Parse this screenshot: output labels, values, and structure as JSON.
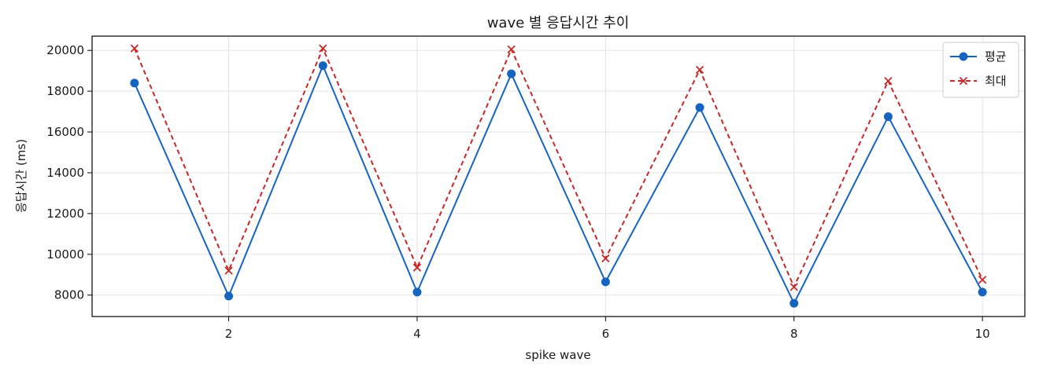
{
  "chart_data": {
    "type": "line",
    "title": "wave 별 응답시간 추이",
    "xlabel": "spike wave",
    "ylabel": "응답시간 (ms)",
    "x": [
      1,
      2,
      3,
      4,
      5,
      6,
      7,
      8,
      9,
      10
    ],
    "xlim": [
      0.55,
      10.45
    ],
    "ylim": [
      6950,
      20700
    ],
    "xticks": [
      2,
      4,
      6,
      8,
      10
    ],
    "yticks": [
      8000,
      10000,
      12000,
      14000,
      16000,
      18000,
      20000
    ],
    "grid": true,
    "legend_position": "top-right",
    "series": [
      {
        "name": "평균",
        "values": [
          18400,
          7950,
          19250,
          8150,
          18850,
          8650,
          17200,
          7600,
          16750,
          8150
        ],
        "color": "#1565c0",
        "line_style": "solid",
        "marker": "circle"
      },
      {
        "name": "최대",
        "values": [
          20100,
          9200,
          20100,
          9350,
          20050,
          9800,
          19050,
          8400,
          18500,
          8750
        ],
        "color": "#c62828",
        "line_style": "dashed",
        "marker": "x"
      }
    ]
  }
}
